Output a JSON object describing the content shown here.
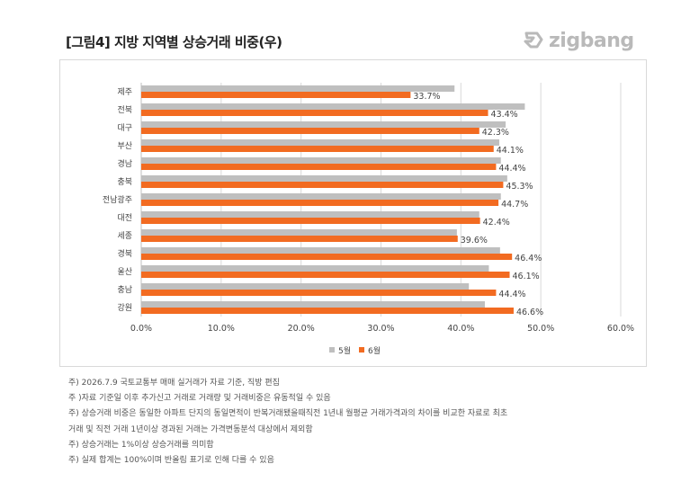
{
  "header": {
    "title": "[그림4] 지방 지역별 상승거래 비중(우)",
    "logo_text": "zigbang"
  },
  "chart_data": {
    "type": "bar",
    "orientation": "horizontal",
    "categories": [
      "제주",
      "전북",
      "대구",
      "부산",
      "경남",
      "충북",
      "전남광주",
      "대전",
      "세종",
      "경북",
      "울산",
      "충남",
      "강원"
    ],
    "series": [
      {
        "name": "5월",
        "color": "#bfbfbf",
        "values": [
          39.2,
          48.0,
          45.6,
          44.8,
          45.0,
          45.8,
          45.0,
          42.3,
          39.5,
          44.9,
          43.5,
          41.0,
          43.0
        ]
      },
      {
        "name": "6월",
        "color": "#f26b21",
        "values": [
          33.7,
          43.4,
          42.3,
          44.1,
          44.4,
          45.3,
          44.7,
          42.4,
          39.6,
          46.4,
          46.1,
          44.4,
          46.6
        ]
      }
    ],
    "data_labels": [
      "33.7%",
      "43.4%",
      "42.3%",
      "44.1%",
      "44.4%",
      "45.3%",
      "44.7%",
      "42.4%",
      "39.6%",
      "46.4%",
      "46.1%",
      "44.4%",
      "46.6%"
    ],
    "x_ticks": [
      "0.0%",
      "10.0%",
      "20.0%",
      "30.0%",
      "40.0%",
      "50.0%",
      "60.0%"
    ],
    "xlim": [
      0,
      60
    ],
    "grid": true,
    "legend": "bottom-center"
  },
  "notes": [
    "주) 2026.7.9 국토교통부 매매 실거래가 자료 기준, 직방 편집",
    "주 )자료 기준일 이후 추가신고 거래로 거래량 및 거래비중은 유동적일 수 있음",
    "주) 상승거래 비중은 동일한 아파트 단지의 동일면적이 반복거래됐을때직전 1년내 월평균 거래가격과의 차이를 비교한 자료로 최초",
    "거래 및 직전 거래 1년이상 경과된 거래는 가격변동분석 대상에서 제외함",
    "주) 상승거래는 1%이상 상승거래를 의미함",
    "주) 실제 합계는 100%이며 반올림 표기로 인해 다를 수 있음"
  ]
}
